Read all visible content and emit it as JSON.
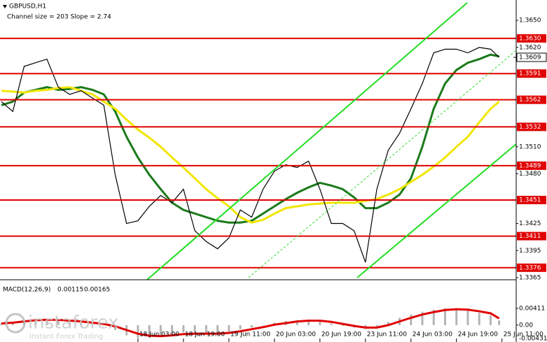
{
  "header": {
    "symbol": "GBPUSD,H1",
    "note": "Channel size = 203 Slope = 2.74",
    "logo": "instaforex",
    "tagline": "Instant Forex Trading"
  },
  "chart_data": [
    {
      "type": "line",
      "x": [
        0,
        4,
        8,
        12,
        16,
        20,
        24,
        28,
        32,
        36,
        40,
        44,
        48,
        52,
        56,
        60,
        64,
        68,
        72,
        76,
        80,
        84,
        88,
        92,
        96,
        100,
        104,
        108,
        112,
        116,
        120,
        124,
        128,
        132,
        136,
        140,
        144,
        148,
        152,
        156,
        160,
        164,
        168,
        172,
        175
      ],
      "series": [
        {
          "color": "#000000",
          "values": [
            1.356,
            1.3549,
            1.3599,
            1.3603,
            1.3607,
            1.3576,
            1.3568,
            1.3572,
            1.3564,
            1.3556,
            1.3479,
            1.3425,
            1.3428,
            1.3444,
            1.3456,
            1.3448,
            1.3463,
            1.3417,
            1.3405,
            1.3397,
            1.3409,
            1.344,
            1.3432,
            1.3463,
            1.3483,
            1.349,
            1.3487,
            1.3494,
            1.3463,
            1.3425,
            1.3425,
            1.3417,
            1.3382,
            1.3463,
            1.3506,
            1.3525,
            1.3552,
            1.358,
            1.3614,
            1.3618,
            1.3618,
            1.3614,
            1.362,
            1.3618,
            1.3609
          ]
        },
        {
          "color": "#1a7a1a",
          "values": [
            1.3556,
            1.356,
            1.357,
            1.3573,
            1.3576,
            1.3573,
            1.3574,
            1.3576,
            1.3573,
            1.3568,
            1.3549,
            1.3521,
            1.3498,
            1.3479,
            1.3463,
            1.3448,
            1.344,
            1.3436,
            1.3432,
            1.3428,
            1.3426,
            1.3426,
            1.3428,
            1.3436,
            1.3444,
            1.3452,
            1.3459,
            1.3465,
            1.347,
            1.3467,
            1.3463,
            1.3454,
            1.3442,
            1.3442,
            1.3448,
            1.3457,
            1.3475,
            1.351,
            1.3552,
            1.358,
            1.3595,
            1.3603,
            1.3607,
            1.3612,
            1.361
          ]
        },
        {
          "color": "#f2e600",
          "values": [
            1.3572,
            1.3571,
            1.357,
            1.3572,
            1.3573,
            1.3575,
            1.3576,
            1.3572,
            1.3568,
            1.356,
            1.3552,
            1.354,
            1.3529,
            1.352,
            1.351,
            1.3498,
            1.3487,
            1.3475,
            1.3463,
            1.3453,
            1.3444,
            1.3432,
            1.3426,
            1.3429,
            1.3436,
            1.3442,
            1.3444,
            1.3446,
            1.3447,
            1.3448,
            1.3448,
            1.3448,
            1.345,
            1.3452,
            1.3457,
            1.3463,
            1.3471,
            1.3479,
            1.3488,
            1.3498,
            1.351,
            1.3521,
            1.3537,
            1.3552,
            1.356
          ]
        }
      ],
      "xlim": [
        -0.5,
        181
      ],
      "ylim": [
        1.3365,
        1.36725
      ],
      "xticks": [
        {
          "value": 48,
          "label": "18 Jun 03:00"
        },
        {
          "value": 64,
          "label": "18 Jun 19:00"
        },
        {
          "value": 80,
          "label": "19 Jun 11:00"
        },
        {
          "value": 96,
          "label": "20 Jun 03:00"
        },
        {
          "value": 112,
          "label": "20 Jun 19:00"
        },
        {
          "value": 128,
          "label": "23 Jun 11:00"
        },
        {
          "value": 144,
          "label": "24 Jun 03:00"
        },
        {
          "value": 160,
          "label": "24 Jun 19:00"
        },
        {
          "value": 176,
          "label": "25 Jun 11:00"
        }
      ],
      "yticks": [
        {
          "value": 1.365,
          "label": "1.3650"
        },
        {
          "value": 1.362,
          "label": "1.3620"
        },
        {
          "value": 1.351,
          "label": "1.3510"
        },
        {
          "value": 1.348,
          "label": "1.3480"
        },
        {
          "value": 1.3425,
          "label": "1.3425"
        },
        {
          "value": 1.3395,
          "label": "1.3395"
        },
        {
          "value": 1.3365,
          "label": "1.3365"
        }
      ],
      "levels": [
        {
          "value": 1.363,
          "label": "1.3630"
        },
        {
          "value": 1.3591,
          "label": "1.3591"
        },
        {
          "value": 1.3562,
          "label": "1.3562"
        },
        {
          "value": 1.3532,
          "label": "1.3532"
        },
        {
          "value": 1.3489,
          "label": "1.3489"
        },
        {
          "value": 1.3451,
          "label": "1.3451"
        },
        {
          "value": 1.3411,
          "label": "1.3411"
        },
        {
          "value": 1.3376,
          "label": "1.3376"
        }
      ],
      "level_color": "#e00000",
      "current": {
        "value": 1.3609,
        "label": "1.3609"
      }
    },
    {
      "type": "bar",
      "title": "MACD(12,26,9)",
      "x": [
        0,
        4,
        8,
        12,
        16,
        20,
        24,
        28,
        32,
        36,
        40,
        44,
        48,
        52,
        56,
        60,
        64,
        68,
        72,
        76,
        80,
        84,
        88,
        92,
        96,
        100,
        104,
        108,
        112,
        116,
        120,
        124,
        128,
        132,
        136,
        140,
        144,
        148,
        152,
        156,
        160,
        164,
        168,
        172,
        175
      ],
      "series": [
        {
          "color": "#b4b4b4",
          "values": [
            0.0005,
            0.0008,
            0.0012,
            0.0015,
            0.0014,
            0.0012,
            0.0008,
            0.0005,
            0.0003,
            0.0,
            -0.0012,
            -0.0025,
            -0.0032,
            -0.003,
            -0.0026,
            -0.0022,
            -0.0018,
            -0.002,
            -0.0022,
            -0.002,
            -0.0016,
            -0.001,
            -0.0006,
            0.0,
            0.0006,
            0.001,
            0.0012,
            0.0013,
            0.001,
            0.0004,
            -0.0002,
            -0.0006,
            -0.001,
            -0.0004,
            0.0008,
            0.0018,
            0.0026,
            0.0033,
            0.0038,
            0.0041,
            0.004,
            0.0036,
            0.003,
            0.0024,
            0.00115
          ]
        },
        {
          "type": "line",
          "color": "#e00000",
          "values": [
            0.0004,
            0.0006,
            0.0009,
            0.0012,
            0.0013,
            0.0013,
            0.0011,
            0.0009,
            0.0006,
            0.0003,
            -0.0003,
            -0.0012,
            -0.0021,
            -0.0026,
            -0.0027,
            -0.0025,
            -0.0022,
            -0.0021,
            -0.0021,
            -0.0021,
            -0.0019,
            -0.0015,
            -0.001,
            -0.0005,
            0.0001,
            0.0005,
            0.0009,
            0.0011,
            0.0011,
            0.0008,
            0.0003,
            -0.0002,
            -0.0006,
            -0.0006,
            0.0,
            0.0009,
            0.0018,
            0.0026,
            0.0032,
            0.0037,
            0.0039,
            0.0038,
            0.0034,
            0.0029,
            0.00165
          ]
        }
      ],
      "xlim": [
        -0.5,
        181
      ],
      "ylim": [
        -0.00431,
        0.01044
      ],
      "yticks": [
        0.00411,
        {
          "value": 0,
          "label": "0.00"
        },
        -0.00431
      ]
    }
  ]
}
